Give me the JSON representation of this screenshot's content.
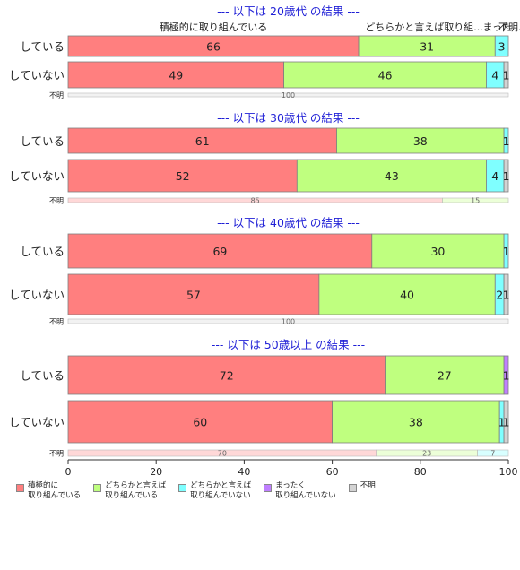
{
  "chart_data": {
    "type": "bar",
    "orientation": "horizontal",
    "stacked": true,
    "xlim": [
      0,
      100
    ],
    "x_ticks": [
      "0",
      "20",
      "40",
      "60",
      "80",
      "100"
    ],
    "header_labels": [
      "積極的に取り組んでいる",
      "どちらかと言えば取り組...",
      "まった...",
      "不明"
    ],
    "categories": [
      "積極的に\n取り組んでいる",
      "どちらかと言えば\n取り組んでいる",
      "どちらかと言えば\n取り組んでいない",
      "まったく\n取り組んでいない",
      "不明"
    ],
    "colors": [
      "#FF7F7F",
      "#BFFF7F",
      "#7FFFFF",
      "#BF7FFF",
      "#D3D3D3"
    ],
    "panels": [
      {
        "title": "--- 以下は 20歳代 の結果 ---",
        "rows": [
          {
            "label": "している",
            "values": [
              66,
              31,
              3,
              0,
              0
            ]
          },
          {
            "label": "していない",
            "values": [
              49,
              46,
              4,
              0,
              1
            ]
          },
          {
            "label": "不明",
            "values": [
              0,
              0,
              0,
              0,
              100
            ]
          }
        ]
      },
      {
        "title": "--- 以下は 30歳代 の結果 ---",
        "rows": [
          {
            "label": "している",
            "values": [
              61,
              38,
              1,
              0,
              0
            ]
          },
          {
            "label": "していない",
            "values": [
              52,
              43,
              4,
              0,
              1
            ]
          },
          {
            "label": "不明",
            "values": [
              85,
              15,
              0,
              0,
              0
            ]
          }
        ]
      },
      {
        "title": "--- 以下は 40歳代 の結果 ---",
        "rows": [
          {
            "label": "している",
            "values": [
              69,
              30,
              1,
              0,
              0
            ]
          },
          {
            "label": "していない",
            "values": [
              57,
              40,
              2,
              0,
              1
            ]
          },
          {
            "label": "不明",
            "values": [
              0,
              0,
              0,
              0,
              100
            ]
          }
        ]
      },
      {
        "title": "--- 以下は 50歳以上 の結果 ---",
        "rows": [
          {
            "label": "している",
            "values": [
              72,
              27,
              0,
              1,
              0
            ]
          },
          {
            "label": "していない",
            "values": [
              60,
              38,
              1,
              0,
              1
            ]
          },
          {
            "label": "不明",
            "values": [
              70,
              23,
              7,
              0,
              0
            ]
          }
        ]
      }
    ]
  }
}
